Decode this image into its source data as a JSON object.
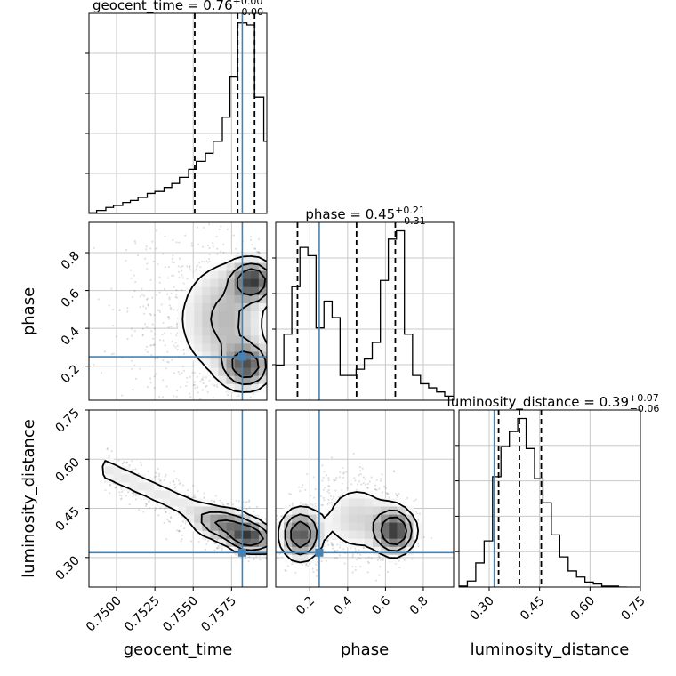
{
  "chart_data": {
    "type": "corner",
    "parameters": [
      "geocent_time",
      "phase",
      "luminosity_distance"
    ],
    "axes_labels": {
      "geocent_time": "geocent_time",
      "phase": "phase",
      "luminosity_distance": "luminosity_distance"
    },
    "ranges": {
      "geocent_time": [
        0.7482,
        0.7598
      ],
      "phase": [
        0.02,
        0.96
      ],
      "luminosity_distance": [
        0.21,
        0.75
      ]
    },
    "ticks": {
      "geocent_time": [
        0.75,
        0.7525,
        0.755,
        0.7575
      ],
      "phase": [
        0.2,
        0.4,
        0.6,
        0.8
      ],
      "luminosity_distance": [
        0.3,
        0.45,
        0.6,
        0.75
      ]
    },
    "tick_labels": {
      "geocent_time": [
        "0.7500",
        "0.7525",
        "0.7550",
        "0.7575"
      ],
      "phase": [
        "0.2",
        "0.4",
        "0.6",
        "0.8"
      ],
      "luminosity_distance": [
        "0.30",
        "0.45",
        "0.60",
        "0.75"
      ]
    },
    "titles": [
      {
        "param": "geocent_time",
        "name": "geocent_time",
        "median": "0.76",
        "plus": "+0.00",
        "minus": "−0.00"
      },
      {
        "param": "phase",
        "name": "phase",
        "median": "0.45",
        "plus": "+0.21",
        "minus": "−0.31"
      },
      {
        "param": "luminosity_distance",
        "name": "luminosity_distance",
        "median": "0.39",
        "plus": "+0.07",
        "minus": "−0.06"
      }
    ],
    "quantiles": {
      "geocent_time": [
        0.7551,
        0.7579,
        0.759
      ],
      "phase": [
        0.135,
        0.447,
        0.652
      ],
      "luminosity_distance": [
        0.328,
        0.39,
        0.455
      ]
    },
    "truths": {
      "geocent_time": 0.7582,
      "phase": 0.25,
      "luminosity_distance": 0.315
    },
    "histograms": {
      "geocent_time": {
        "bin_edges": [
          0.7482,
          0.7487,
          0.7493,
          0.7498,
          0.7504,
          0.7509,
          0.7514,
          0.752,
          0.7525,
          0.7531,
          0.7536,
          0.7541,
          0.7547,
          0.7552,
          0.7558,
          0.7563,
          0.7569,
          0.7574,
          0.7579,
          0.7585,
          0.759,
          0.7596,
          0.7598
        ],
        "counts": [
          0.3,
          1.5,
          3,
          4,
          5.5,
          6.5,
          8,
          10,
          11,
          13,
          15,
          18,
          22,
          26,
          30,
          36,
          48,
          68,
          95,
          94,
          58,
          36
        ]
      },
      "phase": {
        "bin_edges": [
          0.02,
          0.063,
          0.105,
          0.148,
          0.19,
          0.233,
          0.275,
          0.318,
          0.36,
          0.403,
          0.445,
          0.488,
          0.53,
          0.573,
          0.615,
          0.658,
          0.7,
          0.743,
          0.785,
          0.828,
          0.87,
          0.913,
          0.96
        ],
        "counts": [
          17,
          32,
          55,
          74,
          70,
          35,
          48,
          40,
          12,
          12,
          15,
          20,
          28,
          58,
          78,
          82,
          32,
          12,
          8,
          6,
          4,
          2
        ]
      },
      "luminosity_distance": {
        "bin_edges": [
          0.21,
          0.235,
          0.26,
          0.285,
          0.31,
          0.335,
          0.36,
          0.385,
          0.41,
          0.435,
          0.46,
          0.485,
          0.51,
          0.535,
          0.56,
          0.585,
          0.61,
          0.635,
          0.66,
          0.685,
          0.71
        ],
        "counts": [
          1,
          6,
          24,
          46,
          110,
          140,
          155,
          168,
          138,
          108,
          84,
          52,
          30,
          16,
          10,
          5,
          3,
          1,
          1,
          0
        ]
      }
    },
    "density_2d": [
      {
        "x": "geocent_time",
        "y": "phase",
        "modes": [
          {
            "x": 0.7589,
            "y": 0.65,
            "sx": 0.0008,
            "sy": 0.06,
            "w": 1.0
          },
          {
            "x": 0.7585,
            "y": 0.2,
            "sx": 0.0009,
            "sy": 0.07,
            "w": 0.85
          },
          {
            "x": 0.7572,
            "y": 0.45,
            "sx": 0.0015,
            "sy": 0.18,
            "w": 0.35
          },
          {
            "x": 0.7555,
            "y": 0.45,
            "sx": 0.003,
            "sy": 0.25,
            "w": 0.12
          }
        ],
        "contour_levels": [
          0.15,
          0.35,
          0.6
        ]
      },
      {
        "x": "geocent_time",
        "y": "luminosity_distance",
        "trend": {
          "x0": 0.7497,
          "y0": 0.56,
          "x1": 0.7596,
          "y1": 0.35,
          "sigma": 0.03
        },
        "modes": [
          {
            "x": 0.7586,
            "y": 0.36,
            "sx": 0.0008,
            "sy": 0.025,
            "w": 1.0
          },
          {
            "x": 0.757,
            "y": 0.4,
            "sx": 0.0012,
            "sy": 0.03,
            "w": 0.6
          }
        ],
        "contour_levels": [
          0.15,
          0.35,
          0.6
        ]
      },
      {
        "x": "phase",
        "y": "luminosity_distance",
        "modes": [
          {
            "x": 0.65,
            "y": 0.38,
            "sx": 0.06,
            "sy": 0.04,
            "w": 1.0
          },
          {
            "x": 0.15,
            "y": 0.37,
            "sx": 0.06,
            "sy": 0.045,
            "w": 0.9
          },
          {
            "x": 0.45,
            "y": 0.42,
            "sx": 0.12,
            "sy": 0.07,
            "w": 0.3
          }
        ],
        "contour_levels": [
          0.15,
          0.35,
          0.6
        ]
      }
    ],
    "colors": {
      "truth": "#4682b4",
      "line": "#000000",
      "grid": "#c8c8c8",
      "scatter": "#000000"
    },
    "grid": true
  }
}
